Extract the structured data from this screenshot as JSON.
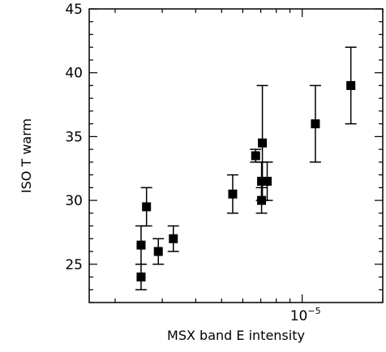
{
  "chart_data": {
    "type": "scatter",
    "title": "",
    "xlabel": "MSX band E intensity",
    "ylabel": "ISO T warm",
    "xscale": "log",
    "xlim": [
      1.6e-06,
      2e-05
    ],
    "ylim": [
      22,
      45
    ],
    "yticks": [
      25,
      30,
      35,
      40,
      45
    ],
    "xticks_labeled": [
      {
        "value": 1e-05,
        "base": "10",
        "exp": "−5"
      }
    ],
    "grid": false,
    "legend": "none",
    "marker": "filled-square",
    "color": "#000000",
    "points": [
      {
        "x": 2.5e-06,
        "y": 24.0,
        "yerr_low": 23.0,
        "yerr_high": 25.0
      },
      {
        "x": 2.5e-06,
        "y": 26.5,
        "yerr_low": 25.0,
        "yerr_high": 28.0
      },
      {
        "x": 2.62e-06,
        "y": 29.5,
        "yerr_low": 28.0,
        "yerr_high": 31.0
      },
      {
        "x": 2.9e-06,
        "y": 26.0,
        "yerr_low": 25.0,
        "yerr_high": 27.0
      },
      {
        "x": 3.3e-06,
        "y": 27.0,
        "yerr_low": 26.0,
        "yerr_high": 28.0
      },
      {
        "x": 5.5e-06,
        "y": 30.5,
        "yerr_low": 29.0,
        "yerr_high": 32.0
      },
      {
        "x": 6.7e-06,
        "y": 33.5,
        "yerr_low": 33.0,
        "yerr_high": 34.0
      },
      {
        "x": 7.1e-06,
        "y": 34.5,
        "yerr_low": 30.0,
        "yerr_high": 39.0
      },
      {
        "x": 7.05e-06,
        "y": 31.5,
        "yerr_low": 30.0,
        "yerr_high": 33.0
      },
      {
        "x": 7.05e-06,
        "y": 30.0,
        "yerr_low": 29.0,
        "yerr_high": 31.0
      },
      {
        "x": 7.4e-06,
        "y": 31.5,
        "yerr_low": 30.0,
        "yerr_high": 33.0
      },
      {
        "x": 1.12e-05,
        "y": 36.0,
        "yerr_low": 33.0,
        "yerr_high": 39.0
      },
      {
        "x": 1.52e-05,
        "y": 39.0,
        "yerr_low": 36.0,
        "yerr_high": 42.0
      }
    ]
  }
}
